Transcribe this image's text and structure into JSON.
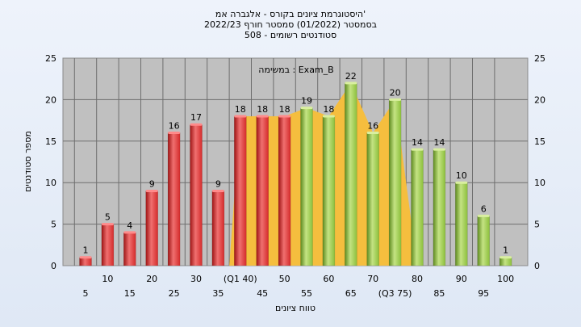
{
  "chart_data": {
    "type": "bar",
    "title_lines": [
      "היסטוגרמת ציונים בקורס - אלגברה אמ'",
      "בסמסטר  (01/2022)  סמסטר חורף  2022/23",
      "סטודנטים רשומים - 508"
    ],
    "annotation": "במשימה : Exam_B",
    "xlabel": "טווח ציונים",
    "ylabel": "מספר סטודנטים",
    "ylim": [
      0,
      25
    ],
    "yticks": [
      0,
      5,
      10,
      15,
      20,
      25
    ],
    "grid": true,
    "categories": [
      "5",
      "10",
      "15",
      "20",
      "25",
      "30",
      "35",
      "(Q1 40)",
      "45",
      "50",
      "55",
      "60",
      "65",
      "70",
      "(Q3 75)",
      "80",
      "85",
      "90",
      "95",
      "100"
    ],
    "values": [
      1,
      5,
      4,
      9,
      16,
      17,
      9,
      18,
      18,
      18,
      19,
      18,
      22,
      16,
      20,
      14,
      14,
      10,
      6,
      1
    ],
    "bar_groups": [
      "red",
      "red",
      "red",
      "red",
      "red",
      "red",
      "red",
      "red",
      "red",
      "red",
      "green",
      "green",
      "green",
      "green",
      "green",
      "green",
      "green",
      "green",
      "green",
      "green"
    ],
    "colors": {
      "red": "#d42b2b",
      "green": "#8cbf3c",
      "band": "#f5be3e",
      "plot_bg": "#c0c0c0"
    }
  }
}
